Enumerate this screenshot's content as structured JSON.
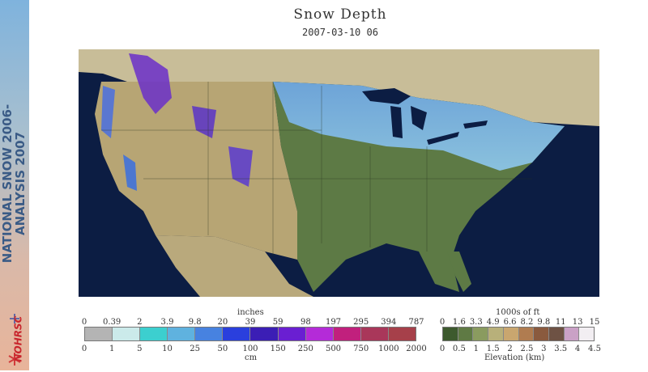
{
  "sidebar": {
    "title_line1": "NATIONAL SNOW",
    "title_line1b": "2006-",
    "title_line2": "ANALYSIS",
    "title_line2b": "2007",
    "logo_text": "NOHRSC"
  },
  "header": {
    "title": "Snow Depth",
    "timestamp": "2007-03-10 06"
  },
  "snow_legend": {
    "top_unit": "inches",
    "bottom_unit": "cm",
    "inches_ticks": [
      "0",
      "0.39",
      "2",
      "3.9",
      "9.8",
      "20",
      "39",
      "59",
      "98",
      "197",
      "295",
      "394",
      "787"
    ],
    "cm_ticks": [
      "0",
      "1",
      "5",
      "10",
      "25",
      "50",
      "100",
      "150",
      "250",
      "500",
      "750",
      "1000",
      "2000"
    ],
    "colors": [
      "#b4b4b4",
      "#cbeaea",
      "#3ccfcf",
      "#5fb2df",
      "#4782e0",
      "#2a3fdd",
      "#3b1eb5",
      "#6a1fd2",
      "#b42bd8",
      "#c1207d",
      "#a9375a",
      "#a6404a"
    ]
  },
  "elevation_legend": {
    "top_unit": "1000s of ft",
    "bottom_unit": "Elevation (km)",
    "ft_ticks": [
      "0",
      "1.6",
      "3.3",
      "4.9",
      "6.6",
      "8.2",
      "9.8",
      "11",
      "13",
      "15"
    ],
    "km_ticks": [
      "0",
      "0.5",
      "1",
      "1.5",
      "2",
      "2.5",
      "3",
      "3.5",
      "4",
      "4.5"
    ],
    "colors": [
      "#3d5a2e",
      "#5f7a44",
      "#8a9b5f",
      "#b8b07a",
      "#c9a66f",
      "#b07c50",
      "#8a5a3e",
      "#6e5244",
      "#caa1c6",
      "#f2eef2"
    ]
  },
  "map_labels": {}
}
